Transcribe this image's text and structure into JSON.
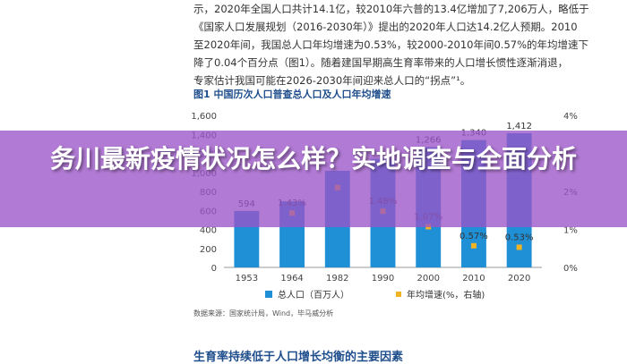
{
  "article": {
    "lines": [
      "示，2020年全国人口共计14.1亿，较2010年六普的13.4亿增加了7,206万人，略低于",
      "《国家人口发展规划（2016-2030年）》提出的2020年人口达14.2亿人预期。2010",
      "至2020年间，我国总人口年均增速为0.53%，较2000-2010年间0.57%的年均增速下",
      "降了0.04个百分点（图1）。随着建国早期高生育率带来的人口增长惯性逐渐消退，",
      "专家估计我国可能在2026-2030年间迎来总人口的“拐点”¹。"
    ],
    "figure_title": "图1  中国历次人口普查总人口及人口年均增速",
    "source": "数据来源：国家统计局，Wind，毕马威分析",
    "next_title": "生育率持续低于人口增长均衡的主要因素"
  },
  "banner": {
    "title": "务川最新疫情状况怎么样？实地调查与全面分析",
    "color": "#9b54c8"
  },
  "chart_data": {
    "type": "bar",
    "categories": [
      "1953",
      "1964",
      "1982",
      "1990",
      "2000",
      "2010",
      "2020"
    ],
    "series": [
      {
        "name": "总人口（百万人）",
        "kind": "bar",
        "axis": "left",
        "color": "#1f8fd6",
        "values": [
          594,
          695,
          1017,
          1143,
          1266,
          1340,
          1412
        ],
        "labels": [
          "594",
          "",
          "",
          "",
          "1,266",
          "1,340",
          "1,412"
        ]
      },
      {
        "name": "年均增速(%，右轴)",
        "kind": "marker",
        "axis": "right",
        "color": "#f0b323",
        "values": [
          null,
          1.43,
          2.1,
          1.48,
          1.07,
          0.57,
          0.53
        ],
        "labels": [
          "",
          "1.43%",
          "",
          "1.48%",
          "1.07%",
          "0.57%",
          "0.53%"
        ]
      }
    ],
    "y_left": {
      "ticks": [
        "0",
        "200",
        "400",
        "600",
        "800",
        "1,000",
        "1,200",
        "1,400",
        "1,600"
      ],
      "ylim": [
        0,
        1600
      ]
    },
    "y_right": {
      "ticks": [
        "0%",
        "1%",
        "2%",
        "3%",
        "4%"
      ],
      "ylim": [
        0,
        4
      ]
    },
    "grid": false,
    "legend": "bottom"
  }
}
